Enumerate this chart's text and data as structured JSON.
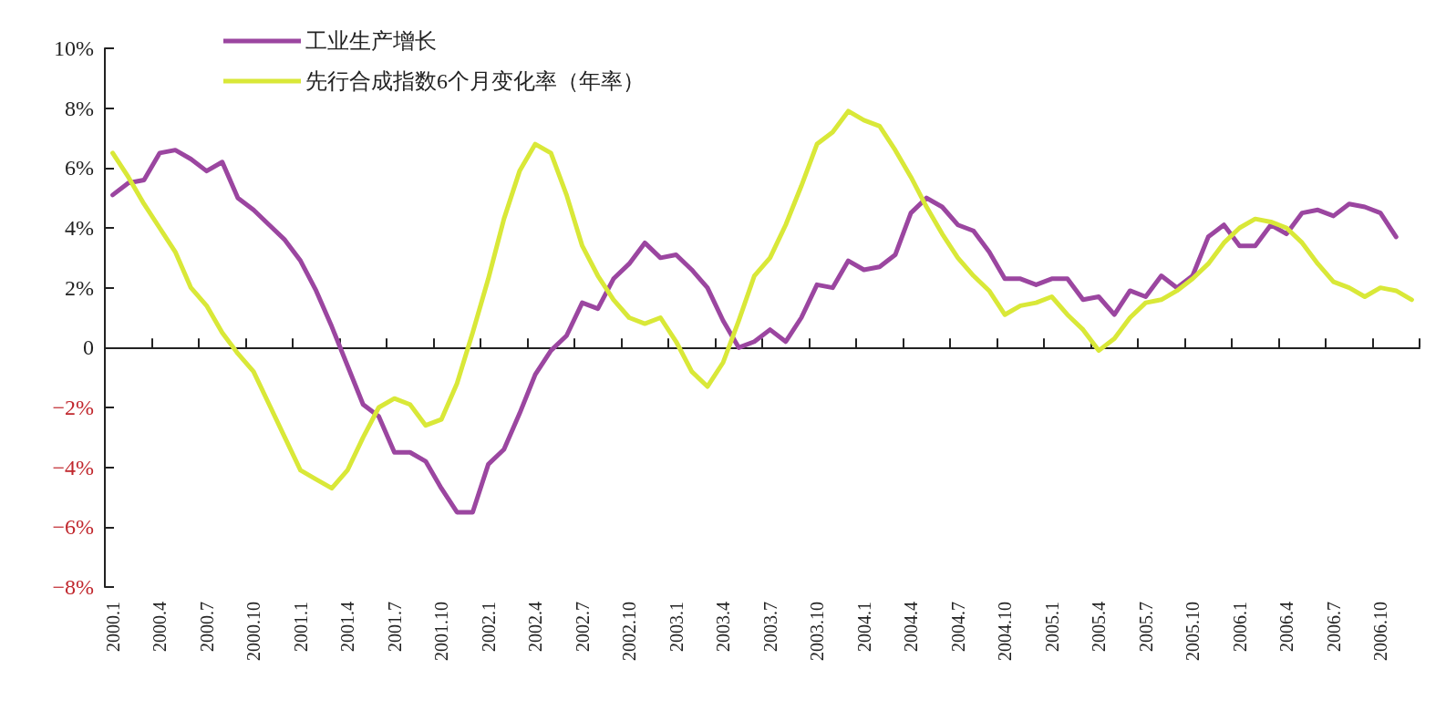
{
  "chart_data": {
    "type": "line",
    "categories": [
      "2000.1",
      null,
      null,
      "2000.4",
      null,
      null,
      "2000.7",
      null,
      null,
      "2000.10",
      null,
      null,
      "2001.1",
      null,
      null,
      "2001.4",
      null,
      null,
      "2001.7",
      null,
      null,
      "2001.10",
      null,
      null,
      "2002.1",
      null,
      null,
      "2002.4",
      null,
      null,
      "2002.7",
      null,
      null,
      "2002.10",
      null,
      null,
      "2003.1",
      null,
      null,
      "2003.4",
      null,
      null,
      "2003.7",
      null,
      null,
      "2003.10",
      null,
      null,
      "2004.1",
      null,
      null,
      "2004.4",
      null,
      null,
      "2004.7",
      null,
      null,
      "2004.10",
      null,
      null,
      "2005.1",
      null,
      null,
      "2005.4",
      null,
      null,
      "2005.7",
      null,
      null,
      "2005.10",
      null,
      null,
      "2006.1",
      null,
      null,
      "2006.4",
      null,
      null,
      "2006.7",
      null,
      null,
      "2006.10",
      null,
      null
    ],
    "series": [
      {
        "name": "工业生产增长",
        "color": "#9b46a0",
        "values": [
          5.1,
          5.5,
          5.6,
          6.5,
          6.6,
          6.3,
          5.9,
          6.2,
          5.0,
          4.6,
          4.1,
          3.6,
          2.9,
          1.9,
          0.7,
          -0.6,
          -1.9,
          -2.3,
          -3.5,
          -3.5,
          -3.8,
          -4.7,
          -5.5,
          -5.5,
          -3.9,
          -3.4,
          -2.2,
          -0.9,
          -0.1,
          0.4,
          1.5,
          1.3,
          2.3,
          2.8,
          3.5,
          3.0,
          3.1,
          2.6,
          2.0,
          0.9,
          0.0,
          0.2,
          0.6,
          0.2,
          1.0,
          2.1,
          2.0,
          2.9,
          2.6,
          2.7,
          3.1,
          4.5,
          5.0,
          4.7,
          4.1,
          3.9,
          3.2,
          2.3,
          2.3,
          2.1,
          2.3,
          2.3,
          1.6,
          1.7,
          1.1,
          1.9,
          1.7,
          2.4,
          2.0,
          2.4,
          3.7,
          4.1,
          3.4,
          3.4,
          4.1,
          3.8,
          4.5,
          4.6,
          4.4,
          4.8,
          4.7,
          4.5,
          3.7,
          null
        ]
      },
      {
        "name": "先行合成指数6个月变化率（年率）",
        "color": "#d9e838",
        "values": [
          6.5,
          5.7,
          4.8,
          4.0,
          3.2,
          2.0,
          1.4,
          0.5,
          -0.2,
          -0.8,
          -1.9,
          -3.0,
          -4.1,
          -4.4,
          -4.7,
          -4.1,
          -3.0,
          -2.0,
          -1.7,
          -1.9,
          -2.6,
          -2.4,
          -1.2,
          0.5,
          2.3,
          4.3,
          5.9,
          6.8,
          6.5,
          5.1,
          3.4,
          2.4,
          1.6,
          1.0,
          0.8,
          1.0,
          0.2,
          -0.8,
          -1.3,
          -0.5,
          0.9,
          2.4,
          3.0,
          4.1,
          5.4,
          6.8,
          7.2,
          7.9,
          7.6,
          7.4,
          6.6,
          5.7,
          4.7,
          3.8,
          3.0,
          2.4,
          1.9,
          1.1,
          1.4,
          1.5,
          1.7,
          1.1,
          0.6,
          -0.1,
          0.3,
          1.0,
          1.5,
          1.6,
          1.9,
          2.3,
          2.8,
          3.5,
          4.0,
          4.3,
          4.2,
          4.0,
          3.5,
          2.8,
          2.2,
          2.0,
          1.7,
          2.0,
          1.9,
          1.6
        ]
      }
    ],
    "ylim": [
      -8,
      10
    ],
    "yticks": [
      {
        "value": -8,
        "label": "−8%"
      },
      {
        "value": -6,
        "label": "−6%"
      },
      {
        "value": -4,
        "label": "−4%"
      },
      {
        "value": -2,
        "label": "−2%"
      },
      0,
      {
        "value": 2,
        "label": "2%"
      },
      {
        "value": 4,
        "label": "4%"
      },
      {
        "value": 6,
        "label": "6%"
      },
      {
        "value": 8,
        "label": "8%"
      },
      {
        "value": 10,
        "label": "10%"
      }
    ],
    "legend": "top left",
    "marker": "none",
    "line_style": "solid"
  }
}
